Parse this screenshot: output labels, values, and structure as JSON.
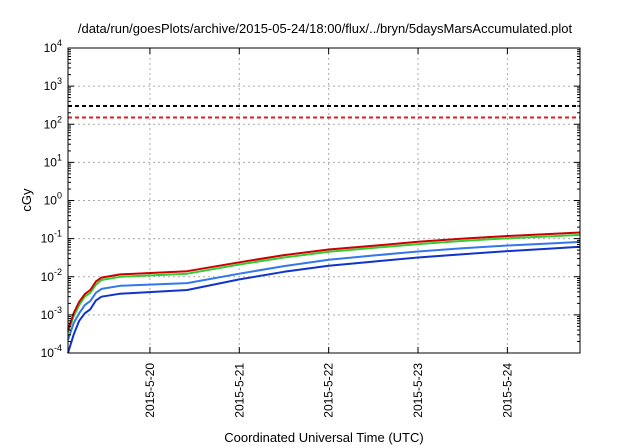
{
  "chart_data": {
    "type": "line",
    "title": "/data/run/goesPlots/archive/2015-05-24/18:00/flux/../bryn/5daysMarsAccumulated.plot",
    "xlabel": "Coordinated Universal Time (UTC)",
    "ylabel": "cGy",
    "y_scale": "log",
    "ylim": [
      0.0001,
      10000
    ],
    "xlim": [
      "2015-05-19 02:00",
      "2015-05-24 19:30"
    ],
    "y_ticks": [
      {
        "base": "10",
        "exp": "-4"
      },
      {
        "base": "10",
        "exp": "-3"
      },
      {
        "base": "10",
        "exp": "-2"
      },
      {
        "base": "10",
        "exp": "-1"
      },
      {
        "base": "10",
        "exp": "0"
      },
      {
        "base": "10",
        "exp": "1"
      },
      {
        "base": "10",
        "exp": "2"
      },
      {
        "base": "10",
        "exp": "3"
      },
      {
        "base": "10",
        "exp": "4"
      }
    ],
    "x_ticks": [
      "2015-5-20",
      "2015-5-21",
      "2015-5-22",
      "2015-5-23",
      "2015-5-24"
    ],
    "grid": true,
    "colors": {
      "threshold_black": "#000000",
      "threshold_red": "#e41a1c",
      "red": "#cc0000",
      "green": "#33cc33",
      "lightblue": "#3377ee",
      "blue": "#1133cc"
    },
    "thresholds": [
      {
        "color_key": "threshold_black",
        "value": 300
      },
      {
        "color_key": "threshold_red",
        "value": 150
      }
    ],
    "series": [
      {
        "color_key": "red",
        "x": [
          "2015-05-19 02:00",
          "2015-05-19 03:30",
          "2015-05-19 05:00",
          "2015-05-19 06:30",
          "2015-05-19 08:00",
          "2015-05-19 09:30",
          "2015-05-19 11:00",
          "2015-05-19 16:00",
          "2015-05-20 10:00",
          "2015-05-21 00:00",
          "2015-05-21 12:00",
          "2015-05-22 00:00",
          "2015-05-22 12:00",
          "2015-05-23 00:00",
          "2015-05-23 12:00",
          "2015-05-24 00:00",
          "2015-05-24 12:00",
          "2015-05-24 19:30"
        ],
        "values": [
          0.0004,
          0.0011,
          0.0022,
          0.0035,
          0.0045,
          0.0075,
          0.0095,
          0.0115,
          0.014,
          0.024,
          0.037,
          0.052,
          0.065,
          0.083,
          0.1,
          0.117,
          0.133,
          0.145
        ]
      },
      {
        "color_key": "green",
        "x": [
          "2015-05-19 02:00",
          "2015-05-19 03:30",
          "2015-05-19 05:00",
          "2015-05-19 06:30",
          "2015-05-19 08:00",
          "2015-05-19 09:30",
          "2015-05-19 11:00",
          "2015-05-19 16:00",
          "2015-05-20 10:00",
          "2015-05-21 00:00",
          "2015-05-21 12:00",
          "2015-05-22 00:00",
          "2015-05-22 12:00",
          "2015-05-23 00:00",
          "2015-05-23 12:00",
          "2015-05-24 00:00",
          "2015-05-24 12:00",
          "2015-05-24 19:30"
        ],
        "values": [
          0.00035,
          0.0009,
          0.0018,
          0.003,
          0.0038,
          0.0062,
          0.0082,
          0.01,
          0.012,
          0.021,
          0.032,
          0.045,
          0.057,
          0.072,
          0.087,
          0.102,
          0.115,
          0.125
        ]
      },
      {
        "color_key": "lightblue",
        "x": [
          "2015-05-19 02:00",
          "2015-05-19 03:30",
          "2015-05-19 05:00",
          "2015-05-19 06:30",
          "2015-05-19 08:00",
          "2015-05-19 09:30",
          "2015-05-19 11:00",
          "2015-05-19 16:00",
          "2015-05-20 10:00",
          "2015-05-21 00:00",
          "2015-05-21 12:00",
          "2015-05-22 00:00",
          "2015-05-22 12:00",
          "2015-05-23 00:00",
          "2015-05-23 12:00",
          "2015-05-24 00:00",
          "2015-05-24 12:00",
          "2015-05-24 19:30"
        ],
        "values": [
          0.00022,
          0.0006,
          0.0011,
          0.0018,
          0.0023,
          0.0038,
          0.0048,
          0.0058,
          0.0068,
          0.012,
          0.019,
          0.028,
          0.036,
          0.046,
          0.056,
          0.066,
          0.075,
          0.082
        ]
      },
      {
        "color_key": "blue",
        "x": [
          "2015-05-19 02:00",
          "2015-05-19 03:30",
          "2015-05-19 05:00",
          "2015-05-19 06:30",
          "2015-05-19 08:00",
          "2015-05-19 09:30",
          "2015-05-19 11:00",
          "2015-05-19 16:00",
          "2015-05-20 10:00",
          "2015-05-21 00:00",
          "2015-05-21 12:00",
          "2015-05-22 00:00",
          "2015-05-22 12:00",
          "2015-05-23 00:00",
          "2015-05-23 12:00",
          "2015-05-24 00:00",
          "2015-05-24 12:00",
          "2015-05-24 19:30"
        ],
        "values": [
          0.0001,
          0.0003,
          0.0007,
          0.0011,
          0.0014,
          0.0024,
          0.003,
          0.0036,
          0.0045,
          0.0085,
          0.0135,
          0.0195,
          0.025,
          0.032,
          0.039,
          0.047,
          0.055,
          0.061
        ]
      }
    ]
  }
}
